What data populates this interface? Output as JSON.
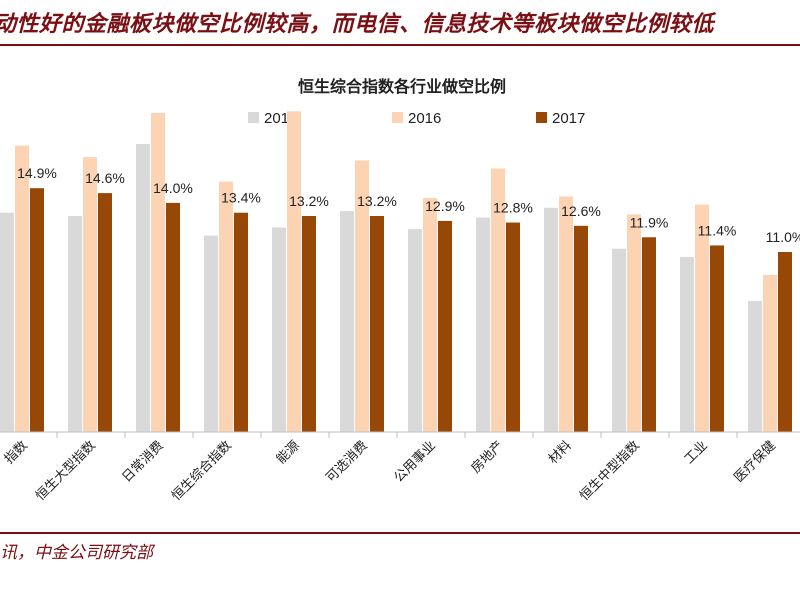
{
  "headline": "动性好的金融板块做空比例较高，而电信、信息技术等板块做空比例较低",
  "source": "讯，中金公司研究部",
  "colors": {
    "2015": "#d9d9d9",
    "2016": "#fcd4b4",
    "2017": "#974706",
    "accent": "#7a0f14"
  },
  "chart_data": {
    "type": "bar",
    "title": "恒生综合指数各行业做空比例",
    "legend_position": "top",
    "categories": [
      "指数",
      "恒生大型指数",
      "日常消费",
      "恒生综合指数",
      "能源",
      "可选消费",
      "公用事业",
      "房地产",
      "材料",
      "恒生中型指数",
      "工业",
      "医疗保健"
    ],
    "series": [
      {
        "name": "2015",
        "values": [
          13.4,
          13.2,
          17.6,
          12.0,
          12.5,
          13.5,
          12.4,
          13.1,
          13.7,
          11.2,
          10.7,
          8.0
        ]
      },
      {
        "name": "2016",
        "values": [
          17.5,
          16.8,
          19.5,
          15.3,
          19.6,
          16.6,
          14.3,
          16.1,
          14.4,
          13.3,
          13.9,
          9.6
        ]
      },
      {
        "name": "2017",
        "values": [
          14.9,
          14.6,
          14.0,
          13.4,
          13.2,
          13.2,
          12.9,
          12.8,
          12.6,
          11.9,
          11.4,
          11.0
        ]
      }
    ],
    "data_labels": [
      "14.9%",
      "14.6%",
      "14.0%",
      "13.4%",
      "13.2%",
      "13.2%",
      "12.9%",
      "12.8%",
      "12.6%",
      "11.9%",
      "11.4%",
      "11.0%"
    ],
    "ylim": [
      0,
      22
    ],
    "grid": false
  }
}
